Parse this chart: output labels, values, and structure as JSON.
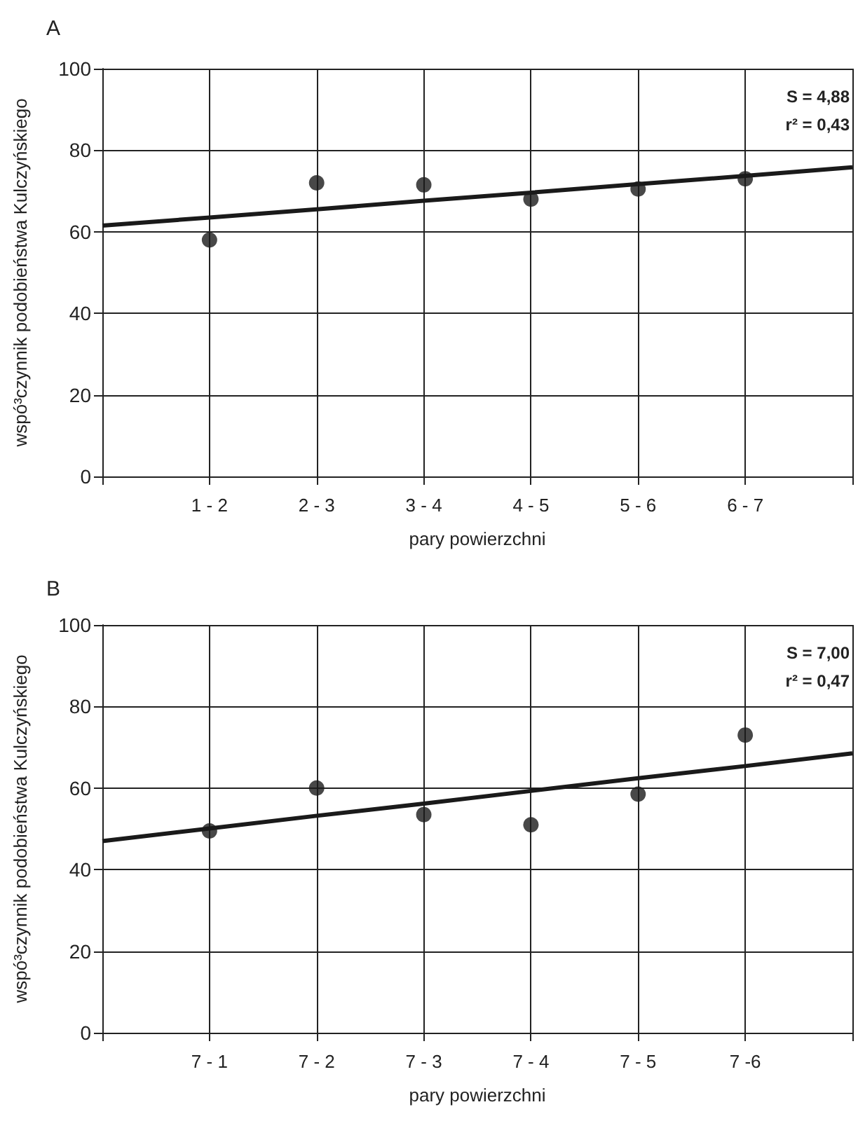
{
  "chart_data": [
    {
      "type": "scatter",
      "title": "A",
      "xlabel": "pary powierzchni",
      "ylabel": "wspó³czynnik podobieństwa Kulczyńskiego",
      "categories": [
        null,
        "1 - 2",
        "2 - 3",
        "3 - 4",
        "4 - 5",
        "5 - 6",
        "6 - 7",
        null
      ],
      "ylim": [
        0,
        100
      ],
      "yticks": [
        0,
        20,
        40,
        60,
        80,
        100
      ],
      "grid": true,
      "marker": "circle",
      "annotations": [
        "S = 4,88",
        "r² = 0,43"
      ],
      "series": [
        {
          "color": "#1a1a1a",
          "values": [
            null,
            58,
            72,
            71.5,
            68,
            70.5,
            73,
            null
          ]
        },
        {
          "type": "line",
          "color": "#1a1a1a",
          "marker": "none",
          "line_style": "solid",
          "values": [
            61.5,
            63.5,
            65.5,
            67.6,
            69.6,
            71.7,
            73.7,
            75.8
          ]
        }
      ]
    },
    {
      "type": "scatter",
      "title": "B",
      "xlabel": "pary powierzchni",
      "ylabel": "wspó³czynnik podobieństwa Kulczyńskiego",
      "categories": [
        null,
        "7 - 1",
        "7 - 2",
        "7 - 3",
        "7 - 4",
        "7 - 5",
        "7 -6",
        null
      ],
      "ylim": [
        0,
        100
      ],
      "yticks": [
        0,
        20,
        40,
        60,
        80,
        100
      ],
      "grid": true,
      "marker": "circle",
      "annotations": [
        "S = 7,00",
        "r² = 0,47"
      ],
      "series": [
        {
          "color": "#1a1a1a",
          "values": [
            null,
            49.5,
            60,
            53.5,
            51,
            58.5,
            73,
            null
          ]
        },
        {
          "type": "line",
          "color": "#1a1a1a",
          "marker": "none",
          "line_style": "solid",
          "values": [
            47,
            50.1,
            53.2,
            56.2,
            59.3,
            62.4,
            65.4,
            68.5
          ]
        }
      ]
    }
  ]
}
